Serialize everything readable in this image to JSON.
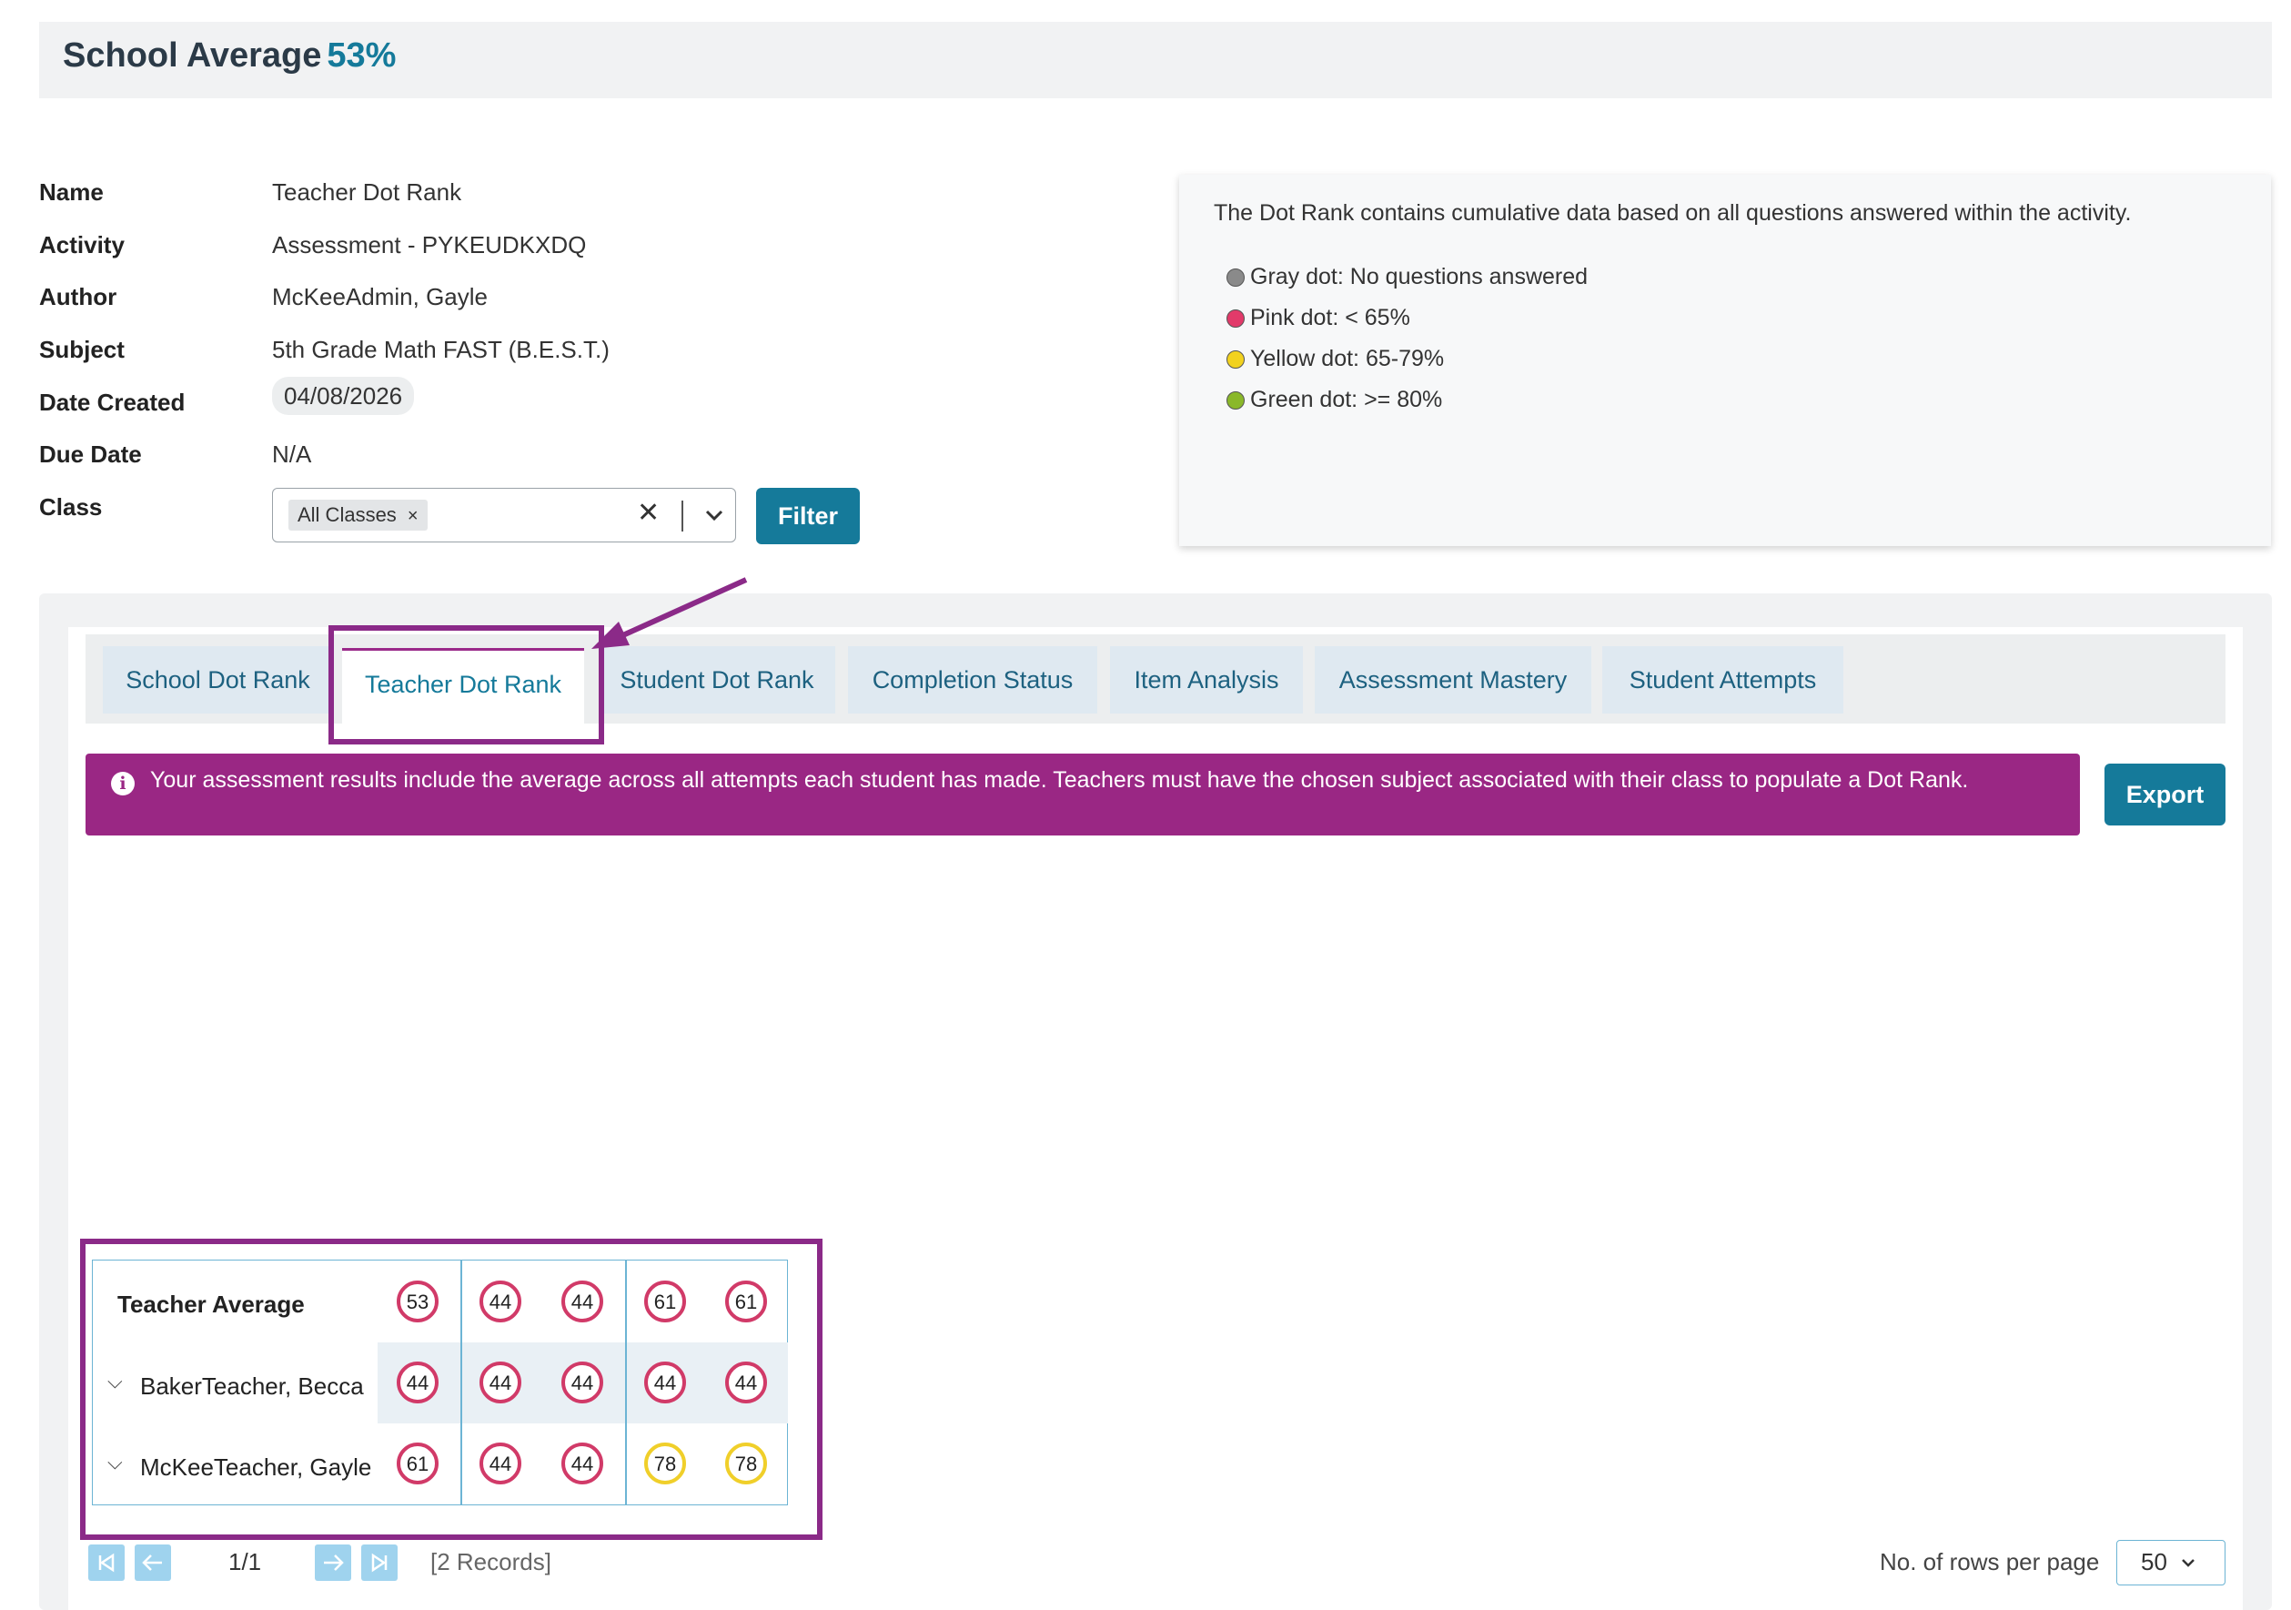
{
  "header": {
    "title": "School Average",
    "average": "53%"
  },
  "info": {
    "rows": [
      {
        "label": "Name",
        "value": "Teacher Dot Rank"
      },
      {
        "label": "Activity",
        "value": "Assessment - PYKEUDKXDQ"
      },
      {
        "label": "Author",
        "value": "McKeeAdmin, Gayle"
      },
      {
        "label": "Subject",
        "value": "5th Grade Math FAST (B.E.S.T.)"
      },
      {
        "label": "Date Created",
        "value": "04/08/2026"
      },
      {
        "label": "Due Date",
        "value": "N/A"
      },
      {
        "label": "Class",
        "value": ""
      }
    ]
  },
  "class_filter": {
    "chip": "All Classes",
    "chip_remove": "×",
    "clear": "✕",
    "filter_label": "Filter"
  },
  "legend": {
    "description": "The Dot Rank contains cumulative data based on all questions answered within the activity.",
    "items": [
      {
        "label": "Gray dot: No questions answered",
        "color": "#8a8a8a"
      },
      {
        "label": "Pink dot: < 65%",
        "color": "#e23a6a"
      },
      {
        "label": "Yellow dot: 65-79%",
        "color": "#f2d21f"
      },
      {
        "label": "Green dot: >= 80%",
        "color": "#8ab82a"
      }
    ]
  },
  "tabs": [
    {
      "label": "School Dot Rank",
      "active": false
    },
    {
      "label": "Teacher Dot Rank",
      "active": true
    },
    {
      "label": "Student Dot Rank",
      "active": false
    },
    {
      "label": "Completion Status",
      "active": false
    },
    {
      "label": "Item Analysis",
      "active": false
    },
    {
      "label": "Assessment Mastery",
      "active": false
    },
    {
      "label": "Student Attempts",
      "active": false
    }
  ],
  "alert": {
    "icon": "i",
    "text": "Your assessment results include the average across all attempts each student has made. Teachers must have the chosen subject associated with their class to populate a Dot Rank."
  },
  "export_label": "Export",
  "dot_table": {
    "rows": [
      {
        "label": "Teacher Average",
        "scores": [
          "53",
          "44",
          "44",
          "61",
          "61"
        ],
        "colors": [
          "pink",
          "pink",
          "pink",
          "pink",
          "pink"
        ]
      },
      {
        "label": "BakerTeacher, Becca",
        "scores": [
          "44",
          "44",
          "44",
          "44",
          "44"
        ],
        "colors": [
          "pink",
          "pink",
          "pink",
          "pink",
          "pink"
        ]
      },
      {
        "label": "McKeeTeacher, Gayle",
        "scores": [
          "61",
          "44",
          "44",
          "78",
          "78"
        ],
        "colors": [
          "pink",
          "pink",
          "pink",
          "yellow",
          "yellow"
        ]
      }
    ]
  },
  "pagination": {
    "page": "1/1",
    "records": "[2 Records]",
    "rows_label": "No. of rows per page",
    "rows_value": "50"
  },
  "colors": {
    "accent": "#157a9a",
    "annotation": "#8b2a88",
    "alert_bg": "#9a2784",
    "pink_dot": "#d13a68",
    "yellow_dot": "#f0cf2a"
  }
}
